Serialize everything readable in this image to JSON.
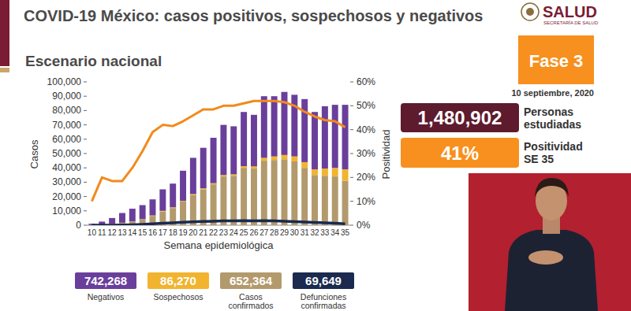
{
  "chart_data": {
    "type": "bar",
    "stacked": true,
    "grid": false,
    "title": "COVID-19 México: casos positivos, sospechosos y negativos",
    "subtitle": "Escenario nacional",
    "xlabel": "Semana epidemiológica",
    "ylabel": "Casos",
    "categories": [
      10,
      11,
      12,
      13,
      14,
      15,
      16,
      17,
      18,
      19,
      20,
      21,
      22,
      23,
      24,
      25,
      26,
      27,
      28,
      29,
      30,
      31,
      32,
      33,
      34,
      35
    ],
    "ylim": [
      0,
      100000
    ],
    "yticks": [
      0,
      {
        "value": 10000,
        "label": "10,000"
      },
      {
        "value": 20000,
        "label": "20,000"
      },
      {
        "value": 30000,
        "label": "30,000"
      },
      {
        "value": 40000,
        "label": "40,000"
      },
      {
        "value": 50000,
        "label": "50,000"
      },
      {
        "value": 60000,
        "label": "60,000"
      },
      {
        "value": 70000,
        "label": "70,000"
      },
      {
        "value": 80000,
        "label": "80,000"
      },
      {
        "value": 90000,
        "label": "90,000"
      },
      {
        "value": 100000,
        "label": "100,000"
      }
    ],
    "y2lim": [
      0,
      60
    ],
    "y2ticks": [
      {
        "value": 0,
        "label": "0%"
      },
      {
        "value": 10,
        "label": "10%"
      },
      {
        "value": 20,
        "label": "20%"
      },
      {
        "value": 30,
        "label": "30%"
      },
      {
        "value": 40,
        "label": "40%"
      },
      {
        "value": 50,
        "label": "50%"
      },
      {
        "value": 60,
        "label": "60%"
      }
    ],
    "series": [
      {
        "name": "Negativos",
        "type": "bar",
        "color": "#6a3f9c",
        "total": "742,268",
        "values": [
          900,
          1950,
          4000,
          6800,
          8900,
          9800,
          11200,
          15000,
          16500,
          21000,
          25300,
          28300,
          31700,
          35000,
          33500,
          37800,
          36000,
          43000,
          42000,
          44000,
          43000,
          44000,
          40000,
          43500,
          44000,
          45000
        ]
      },
      {
        "name": "Sospechosos",
        "type": "bar",
        "color": "#f2b42f",
        "total": "86,270",
        "values": [
          0,
          50,
          100,
          100,
          100,
          200,
          300,
          500,
          500,
          500,
          700,
          700,
          800,
          1000,
          1000,
          1200,
          1500,
          2000,
          2500,
          3000,
          3500,
          4000,
          4000,
          5000,
          6000,
          8000
        ]
      },
      {
        "name": "Casos confirmados",
        "type": "bar",
        "color": "#b39a6c",
        "total": "652,364",
        "values": [
          100,
          500,
          900,
          1600,
          2500,
          4000,
          6500,
          9500,
          12000,
          16500,
          21000,
          25000,
          28500,
          34000,
          34500,
          40000,
          39500,
          45000,
          45500,
          46000,
          44500,
          40000,
          35000,
          34500,
          34000,
          31000
        ]
      },
      {
        "name": "Defunciones confirmadas",
        "type": "line",
        "color": "#1b2a4e",
        "line_style": "solid",
        "marker": "none",
        "total": "69,649",
        "values": [
          0,
          20,
          50,
          150,
          300,
          600,
          1000,
          1400,
          1700,
          2000,
          2300,
          2600,
          2800,
          3000,
          3000,
          3100,
          3000,
          3100,
          3000,
          2800,
          2500,
          2200,
          1900,
          1700,
          1400,
          1000
        ]
      },
      {
        "name": "Positividad",
        "type": "line",
        "axis": "y2",
        "color": "#f28a1c",
        "line_style": "solid",
        "marker": "none",
        "values": [
          10,
          20,
          18.5,
          18.5,
          24,
          31,
          39,
          42,
          41.5,
          43.5,
          46,
          48.5,
          48.5,
          50,
          50,
          51,
          52,
          52,
          52,
          51.5,
          50,
          47.5,
          45.5,
          44,
          43.5,
          41
        ]
      }
    ]
  },
  "header": {
    "logo": "SALUD",
    "logo_caption": "SECRETARÍA DE SALUD"
  },
  "panel": {
    "phase": "Fase 3",
    "date": "10 septiembre, 2020",
    "studied": "1,480,902",
    "studied_caption": [
      "Personas",
      "estudiadas"
    ],
    "positivity": "41%",
    "positivity_caption": [
      "Positividad",
      "SE 35"
    ]
  }
}
